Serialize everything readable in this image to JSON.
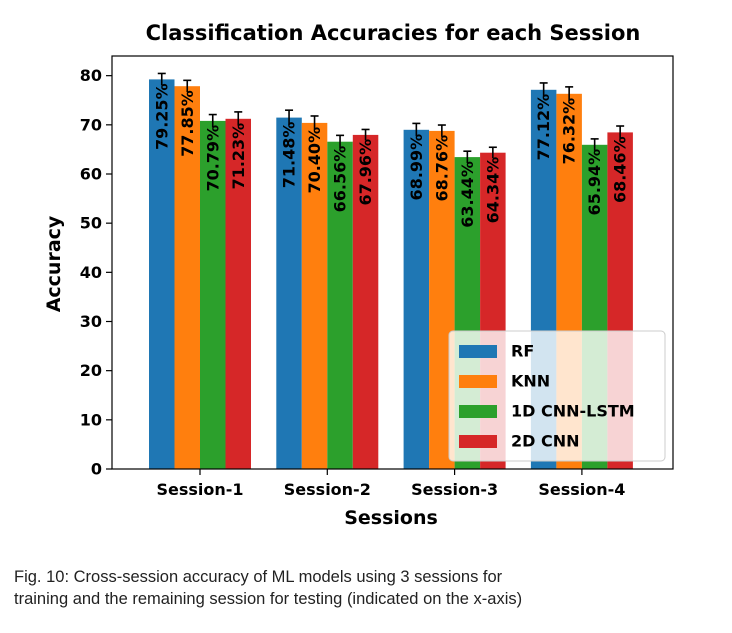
{
  "chart_data": {
    "type": "bar",
    "title": "Classification Accuracies for each Session",
    "xlabel": "Sessions",
    "ylabel": "Accuracy",
    "ylim": [
      0,
      84
    ],
    "yticks": [
      "0",
      "10",
      "20",
      "30",
      "40",
      "50",
      "60",
      "70",
      "80"
    ],
    "categories": [
      "Session-1",
      "Session-2",
      "Session-3",
      "Session-4"
    ],
    "legend_position": "lower-right",
    "series": [
      {
        "name": "RF",
        "color": "#1f77b4",
        "values": [
          79.25,
          71.48,
          68.99,
          77.12
        ],
        "labels": [
          "79.25%",
          "71.48%",
          "68.99%",
          "77.12%"
        ],
        "errors": [
          1.2,
          1.5,
          1.3,
          1.4
        ]
      },
      {
        "name": "KNN",
        "color": "#ff7f0e",
        "values": [
          77.85,
          70.4,
          68.76,
          76.32
        ],
        "labels": [
          "77.85%",
          "70.40%",
          "68.76%",
          "76.32%"
        ],
        "errors": [
          1.2,
          1.4,
          1.2,
          1.4
        ]
      },
      {
        "name": "1D CNN-LSTM",
        "color": "#2ca02c",
        "values": [
          70.79,
          66.56,
          63.44,
          65.94
        ],
        "labels": [
          "70.79%",
          "66.56%",
          "63.44%",
          "65.94%"
        ],
        "errors": [
          1.3,
          1.3,
          1.2,
          1.2
        ]
      },
      {
        "name": "2D CNN",
        "color": "#d62728",
        "values": [
          71.23,
          67.96,
          64.34,
          68.46
        ],
        "labels": [
          "71.23%",
          "67.96%",
          "64.34%",
          "68.46%"
        ],
        "errors": [
          1.4,
          1.1,
          1.1,
          1.3
        ]
      }
    ]
  },
  "caption": {
    "line1": "Fig. 10: Cross-session accuracy of ML models using 3 sessions for",
    "line2": "training and the remaining session for testing (indicated on the x-axis)"
  }
}
